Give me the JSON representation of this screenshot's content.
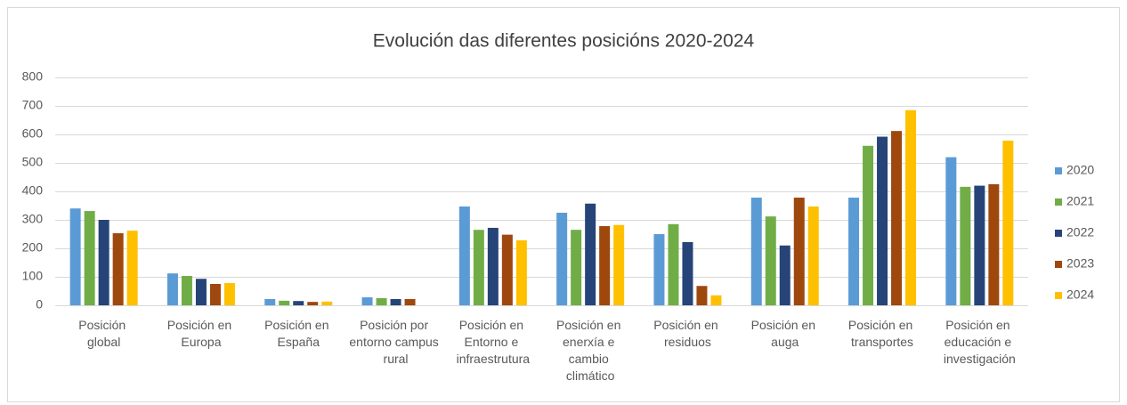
{
  "chart_data": {
    "type": "bar",
    "title": "Evolución das diferentes posicións 2020-2024",
    "categories": [
      "Posición global",
      "Posición en Europa",
      "Posición en España",
      "Posición por entorno campus rural",
      "Posición en Entorno e infraestrutura",
      "Posición en enerxía e cambio climático",
      "Posición en residuos",
      "Posición en auga",
      "Posición en transportes",
      "Posición en educación e investigación"
    ],
    "series": [
      {
        "name": "2020",
        "color": "#5b9bd5",
        "values": [
          340,
          112,
          22,
          28,
          347,
          325,
          250,
          378,
          378,
          520
        ]
      },
      {
        "name": "2021",
        "color": "#70ad47",
        "values": [
          331,
          103,
          16,
          25,
          265,
          265,
          285,
          312,
          560,
          416
        ]
      },
      {
        "name": "2022",
        "color": "#264478",
        "values": [
          300,
          93,
          15,
          22,
          272,
          357,
          222,
          210,
          592,
          420
        ]
      },
      {
        "name": "2023",
        "color": "#9e480e",
        "values": [
          253,
          75,
          12,
          22,
          248,
          278,
          68,
          378,
          612,
          425
        ]
      },
      {
        "name": "2024",
        "color": "#ffc000",
        "values": [
          262,
          78,
          13,
          null,
          228,
          282,
          35,
          347,
          685,
          578
        ]
      }
    ],
    "ylim": [
      0,
      800
    ],
    "yticks": [
      0,
      100,
      200,
      300,
      400,
      500,
      600,
      700,
      800
    ],
    "grid": true,
    "legend": "right"
  }
}
